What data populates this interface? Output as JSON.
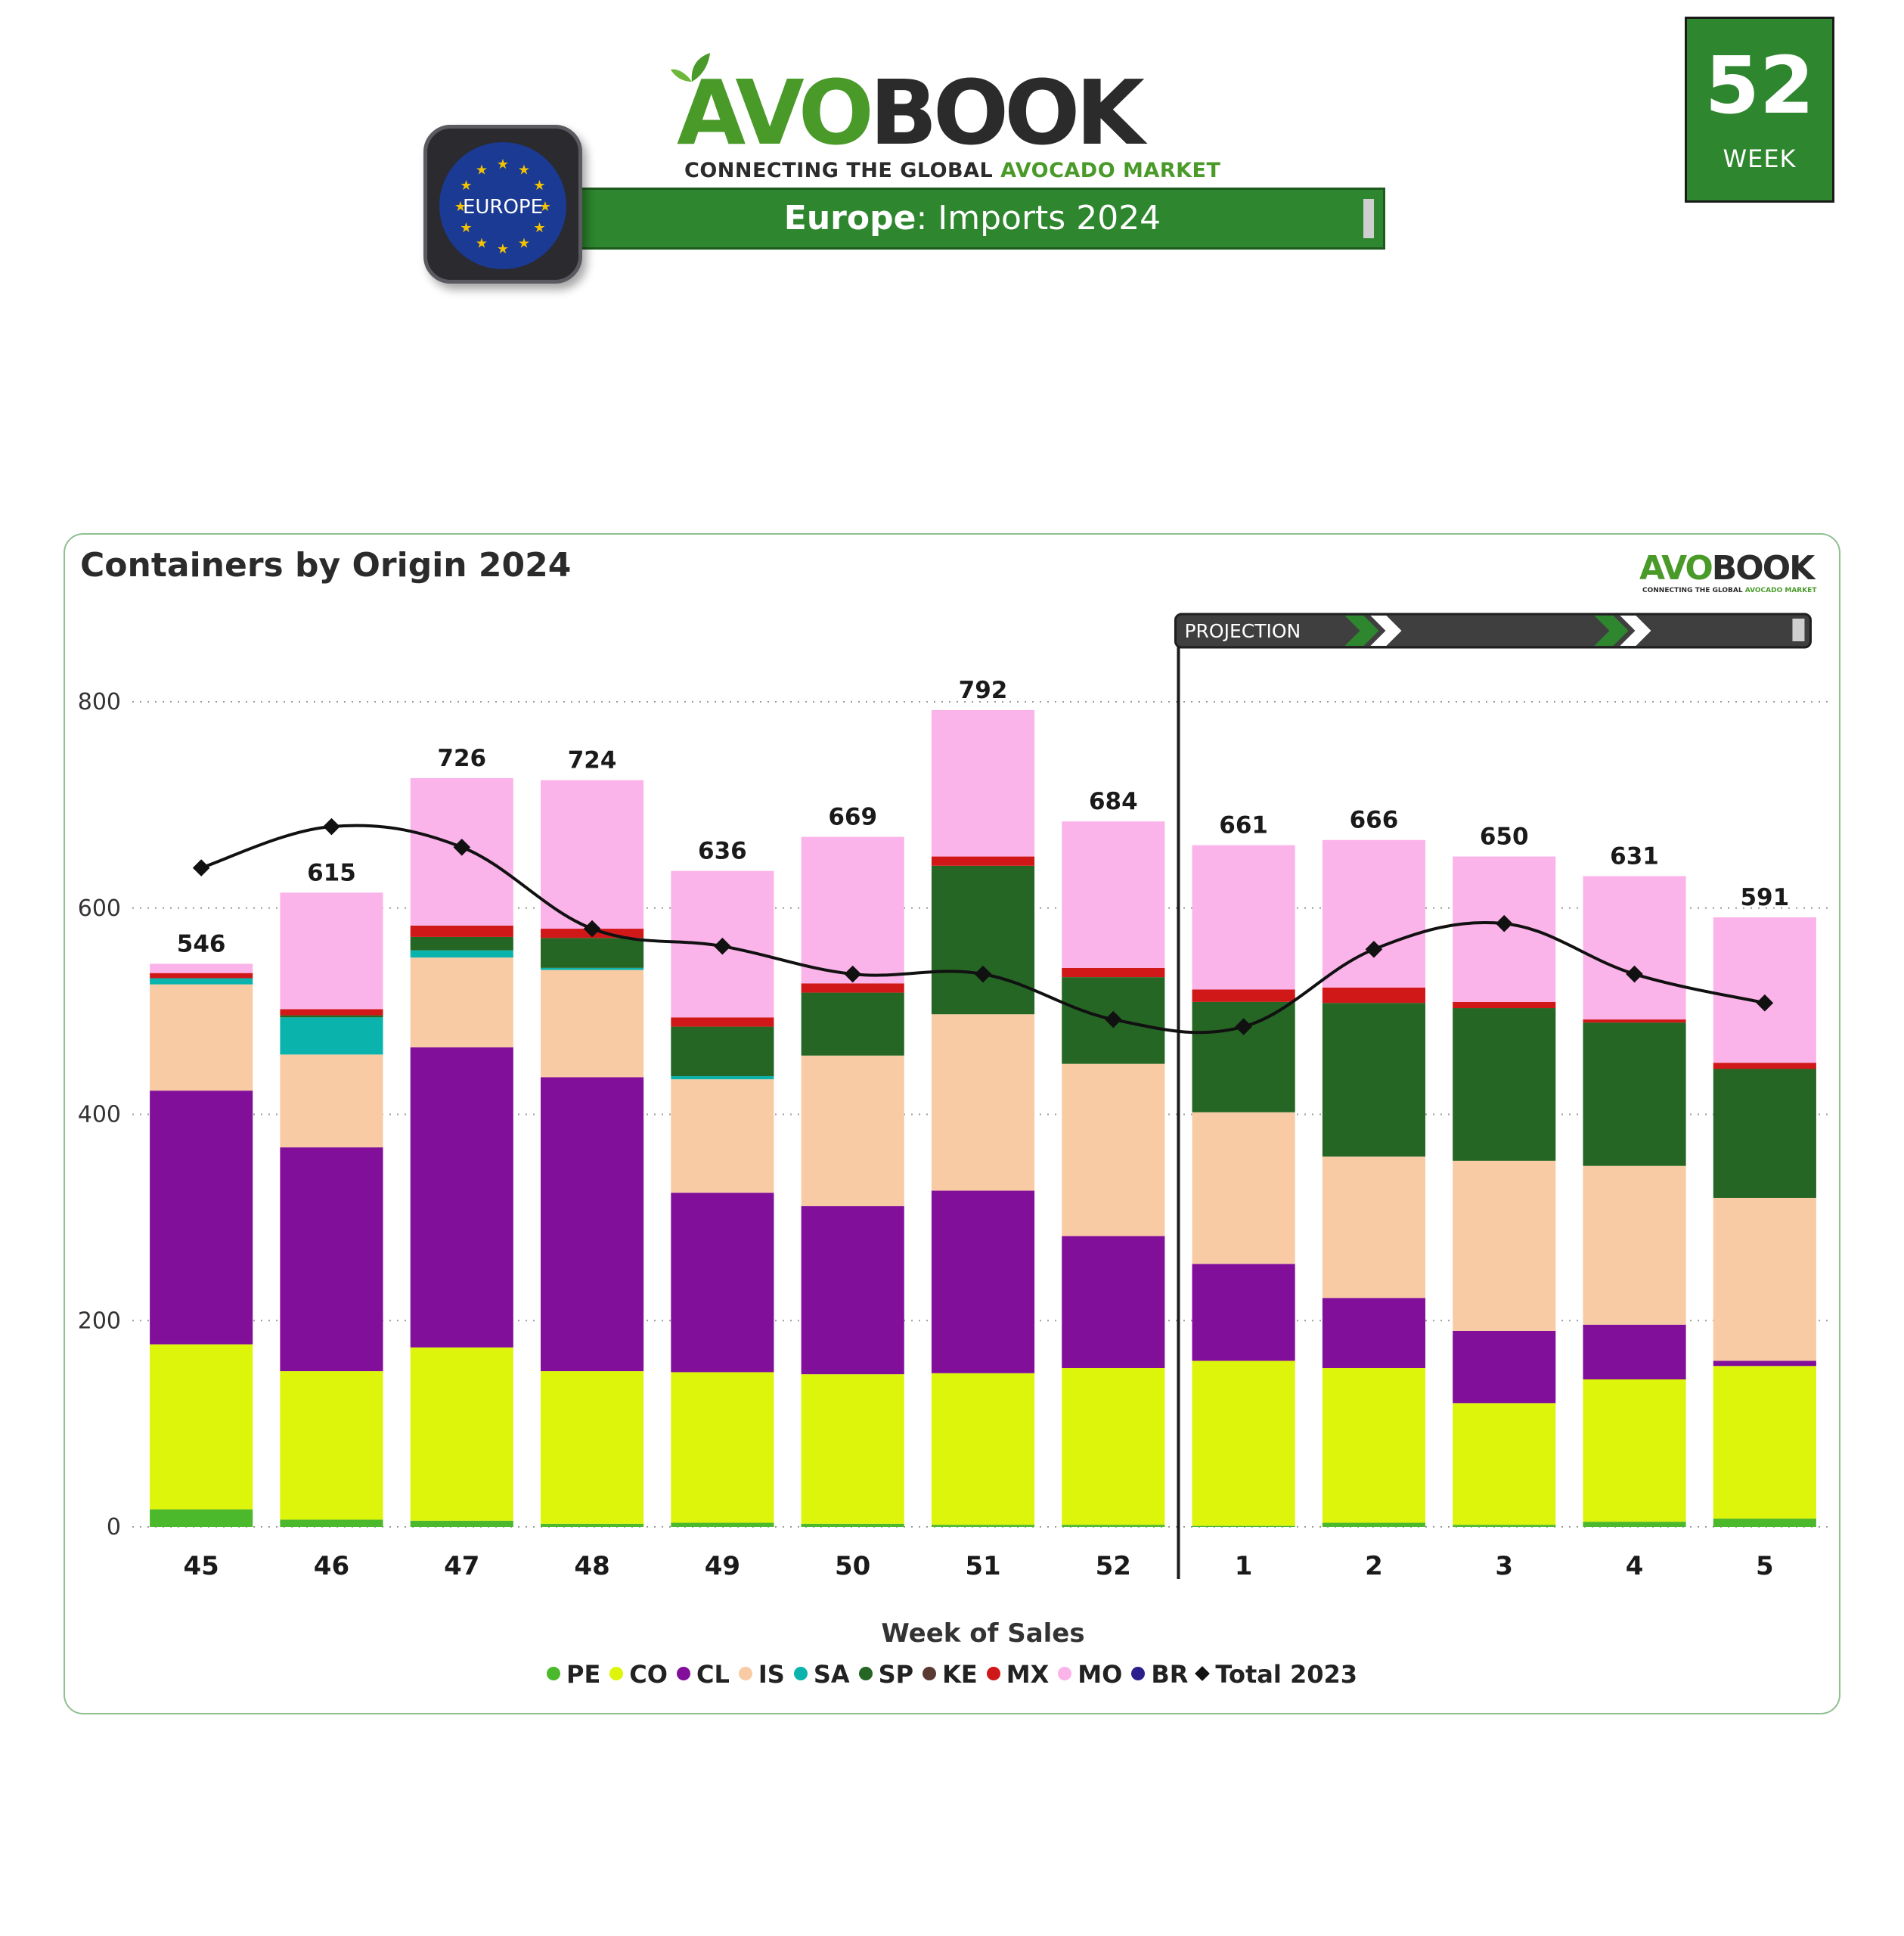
{
  "header": {
    "week_number": "52",
    "week_label": "WEEK",
    "brand_avo": "AVO",
    "brand_book": "BOOK",
    "tagline_prefix": "CONNECTING THE GLOBAL ",
    "tagline_green": "AVOCADO MARKET",
    "region_badge": "EUROPE",
    "title_region": "Europe",
    "title_rest": ": Imports 2024"
  },
  "colors": {
    "PE": "#4cb82c",
    "CO": "#ddf50a",
    "CL": "#820f9a",
    "IS": "#f8cba4",
    "SA": "#0bb3ad",
    "SP": "#256625",
    "KE": "#5a3a32",
    "MX": "#d01818",
    "MO": "#fbb4e9",
    "BR": "#2a1f8c",
    "Total 2023": "#111111"
  },
  "chart_data": {
    "type": "bar",
    "stacked": true,
    "title": "Containers by Origin 2024",
    "xlabel": "Week of Sales",
    "ylabel": "",
    "ylim": [
      0,
      800
    ],
    "yticks": [
      0,
      200,
      400,
      600,
      800
    ],
    "grid": true,
    "projection_label": "PROJECTION",
    "projection_starts_after": "52",
    "categories": [
      "45",
      "46",
      "47",
      "48",
      "49",
      "50",
      "51",
      "52",
      "1",
      "2",
      "3",
      "4",
      "5"
    ],
    "series": [
      {
        "name": "PE",
        "values": [
          17,
          7,
          6,
          3,
          4,
          3,
          2,
          2,
          1,
          4,
          2,
          5,
          8
        ]
      },
      {
        "name": "CO",
        "values": [
          160,
          144,
          168,
          148,
          146,
          145,
          147,
          152,
          160,
          150,
          118,
          138,
          148
        ]
      },
      {
        "name": "CL",
        "values": [
          246,
          217,
          291,
          285,
          174,
          163,
          177,
          128,
          94,
          68,
          70,
          53,
          5
        ]
      },
      {
        "name": "IS",
        "values": [
          103,
          90,
          87,
          104,
          110,
          146,
          171,
          167,
          147,
          137,
          165,
          154,
          158
        ]
      },
      {
        "name": "SA",
        "values": [
          6,
          36,
          7,
          2,
          3,
          0,
          0,
          0,
          0,
          0,
          0,
          0,
          0
        ]
      },
      {
        "name": "SP",
        "values": [
          0,
          2,
          13,
          29,
          48,
          61,
          144,
          84,
          107,
          149,
          148,
          139,
          125
        ]
      },
      {
        "name": "KE",
        "values": [
          0,
          0,
          0,
          0,
          0,
          0,
          0,
          0,
          0,
          0,
          0,
          0,
          0
        ]
      },
      {
        "name": "MX",
        "values": [
          5,
          6,
          11,
          9,
          9,
          9,
          9,
          9,
          12,
          15,
          6,
          3,
          6
        ]
      },
      {
        "name": "MO",
        "values": [
          9,
          113,
          143,
          144,
          142,
          142,
          142,
          142,
          140,
          143,
          141,
          139,
          141
        ]
      },
      {
        "name": "BR",
        "values": [
          0,
          0,
          0,
          0,
          0,
          0,
          0,
          0,
          0,
          0,
          0,
          0,
          0
        ]
      }
    ],
    "totals": [
      546,
      615,
      726,
      724,
      636,
      669,
      792,
      684,
      661,
      666,
      650,
      631,
      591
    ],
    "line": {
      "name": "Total 2023",
      "values": [
        639,
        679,
        659,
        580,
        563,
        536,
        536,
        492,
        485,
        560,
        585,
        536,
        508
      ]
    },
    "legend": [
      "PE",
      "CO",
      "CL",
      "IS",
      "SA",
      "SP",
      "KE",
      "MX",
      "MO",
      "BR",
      "Total 2023"
    ]
  }
}
